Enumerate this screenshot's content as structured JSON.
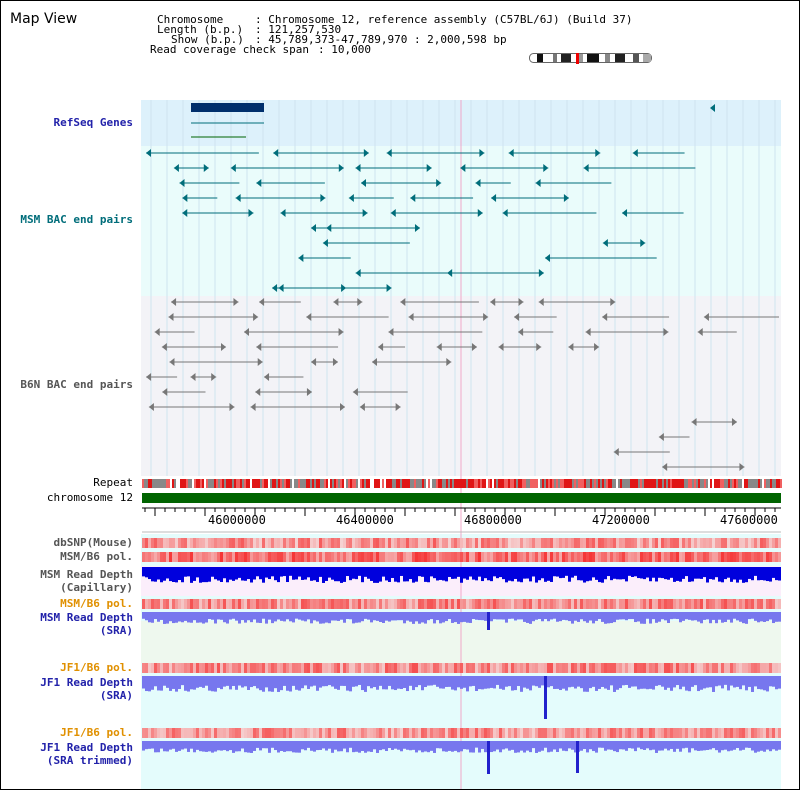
{
  "page": {
    "title": "Map View"
  },
  "info": {
    "chromosome_key": "Chromosome",
    "chromosome_val": ": Chromosome 12, reference assembly (C57BL/6J) (Build 37)",
    "length_key": "Length (b.p.)",
    "length_val": ": 121,257,530",
    "show_key": "Show (b.p.)",
    "show_val": ": 45,789,373-47,789,970 : 2,000,598 bp",
    "coverage_key": "Read coverage check span",
    "coverage_val": ": 10,000"
  },
  "tracks": {
    "refseq": "RefSeq Genes",
    "msm_bac": "MSM BAC end pairs",
    "b6n_bac": "B6N BAC end pairs",
    "repeat": "Repeat",
    "chromosome": "chromosome 12",
    "dbsnp": "dbSNP(Mouse)",
    "msm_b6_pol": "MSM/B6 pol.",
    "msm_depth_cap_1": "MSM Read Depth",
    "msm_depth_cap_2": "(Capillary)",
    "msm_b6_pol_2": "MSM/B6 pol.",
    "msm_depth_sra_1": "MSM Read Depth",
    "msm_depth_sra_2": "(SRA)",
    "jf1_b6_pol": "JF1/B6 pol.",
    "jf1_depth_sra_1": "JF1 Read Depth",
    "jf1_depth_sra_2": "(SRA)",
    "jf1_b6_pol_2": "JF1/B6 pol.",
    "jf1_depth_trim_1": "JF1 Read Depth",
    "jf1_depth_trim_2": "(SRA trimmed)"
  },
  "axis": {
    "ticks": [
      "46000000",
      "46400000",
      "46800000",
      "47200000",
      "47600000"
    ]
  },
  "colors": {
    "track_blue": "#2222aa",
    "track_teal": "#006d7a",
    "track_orange": "#e09000",
    "gene_navy": "#002f6c",
    "chromosome_green": "#006400",
    "depth_dark": "#0000dd",
    "depth_light": "#7777ee"
  }
}
